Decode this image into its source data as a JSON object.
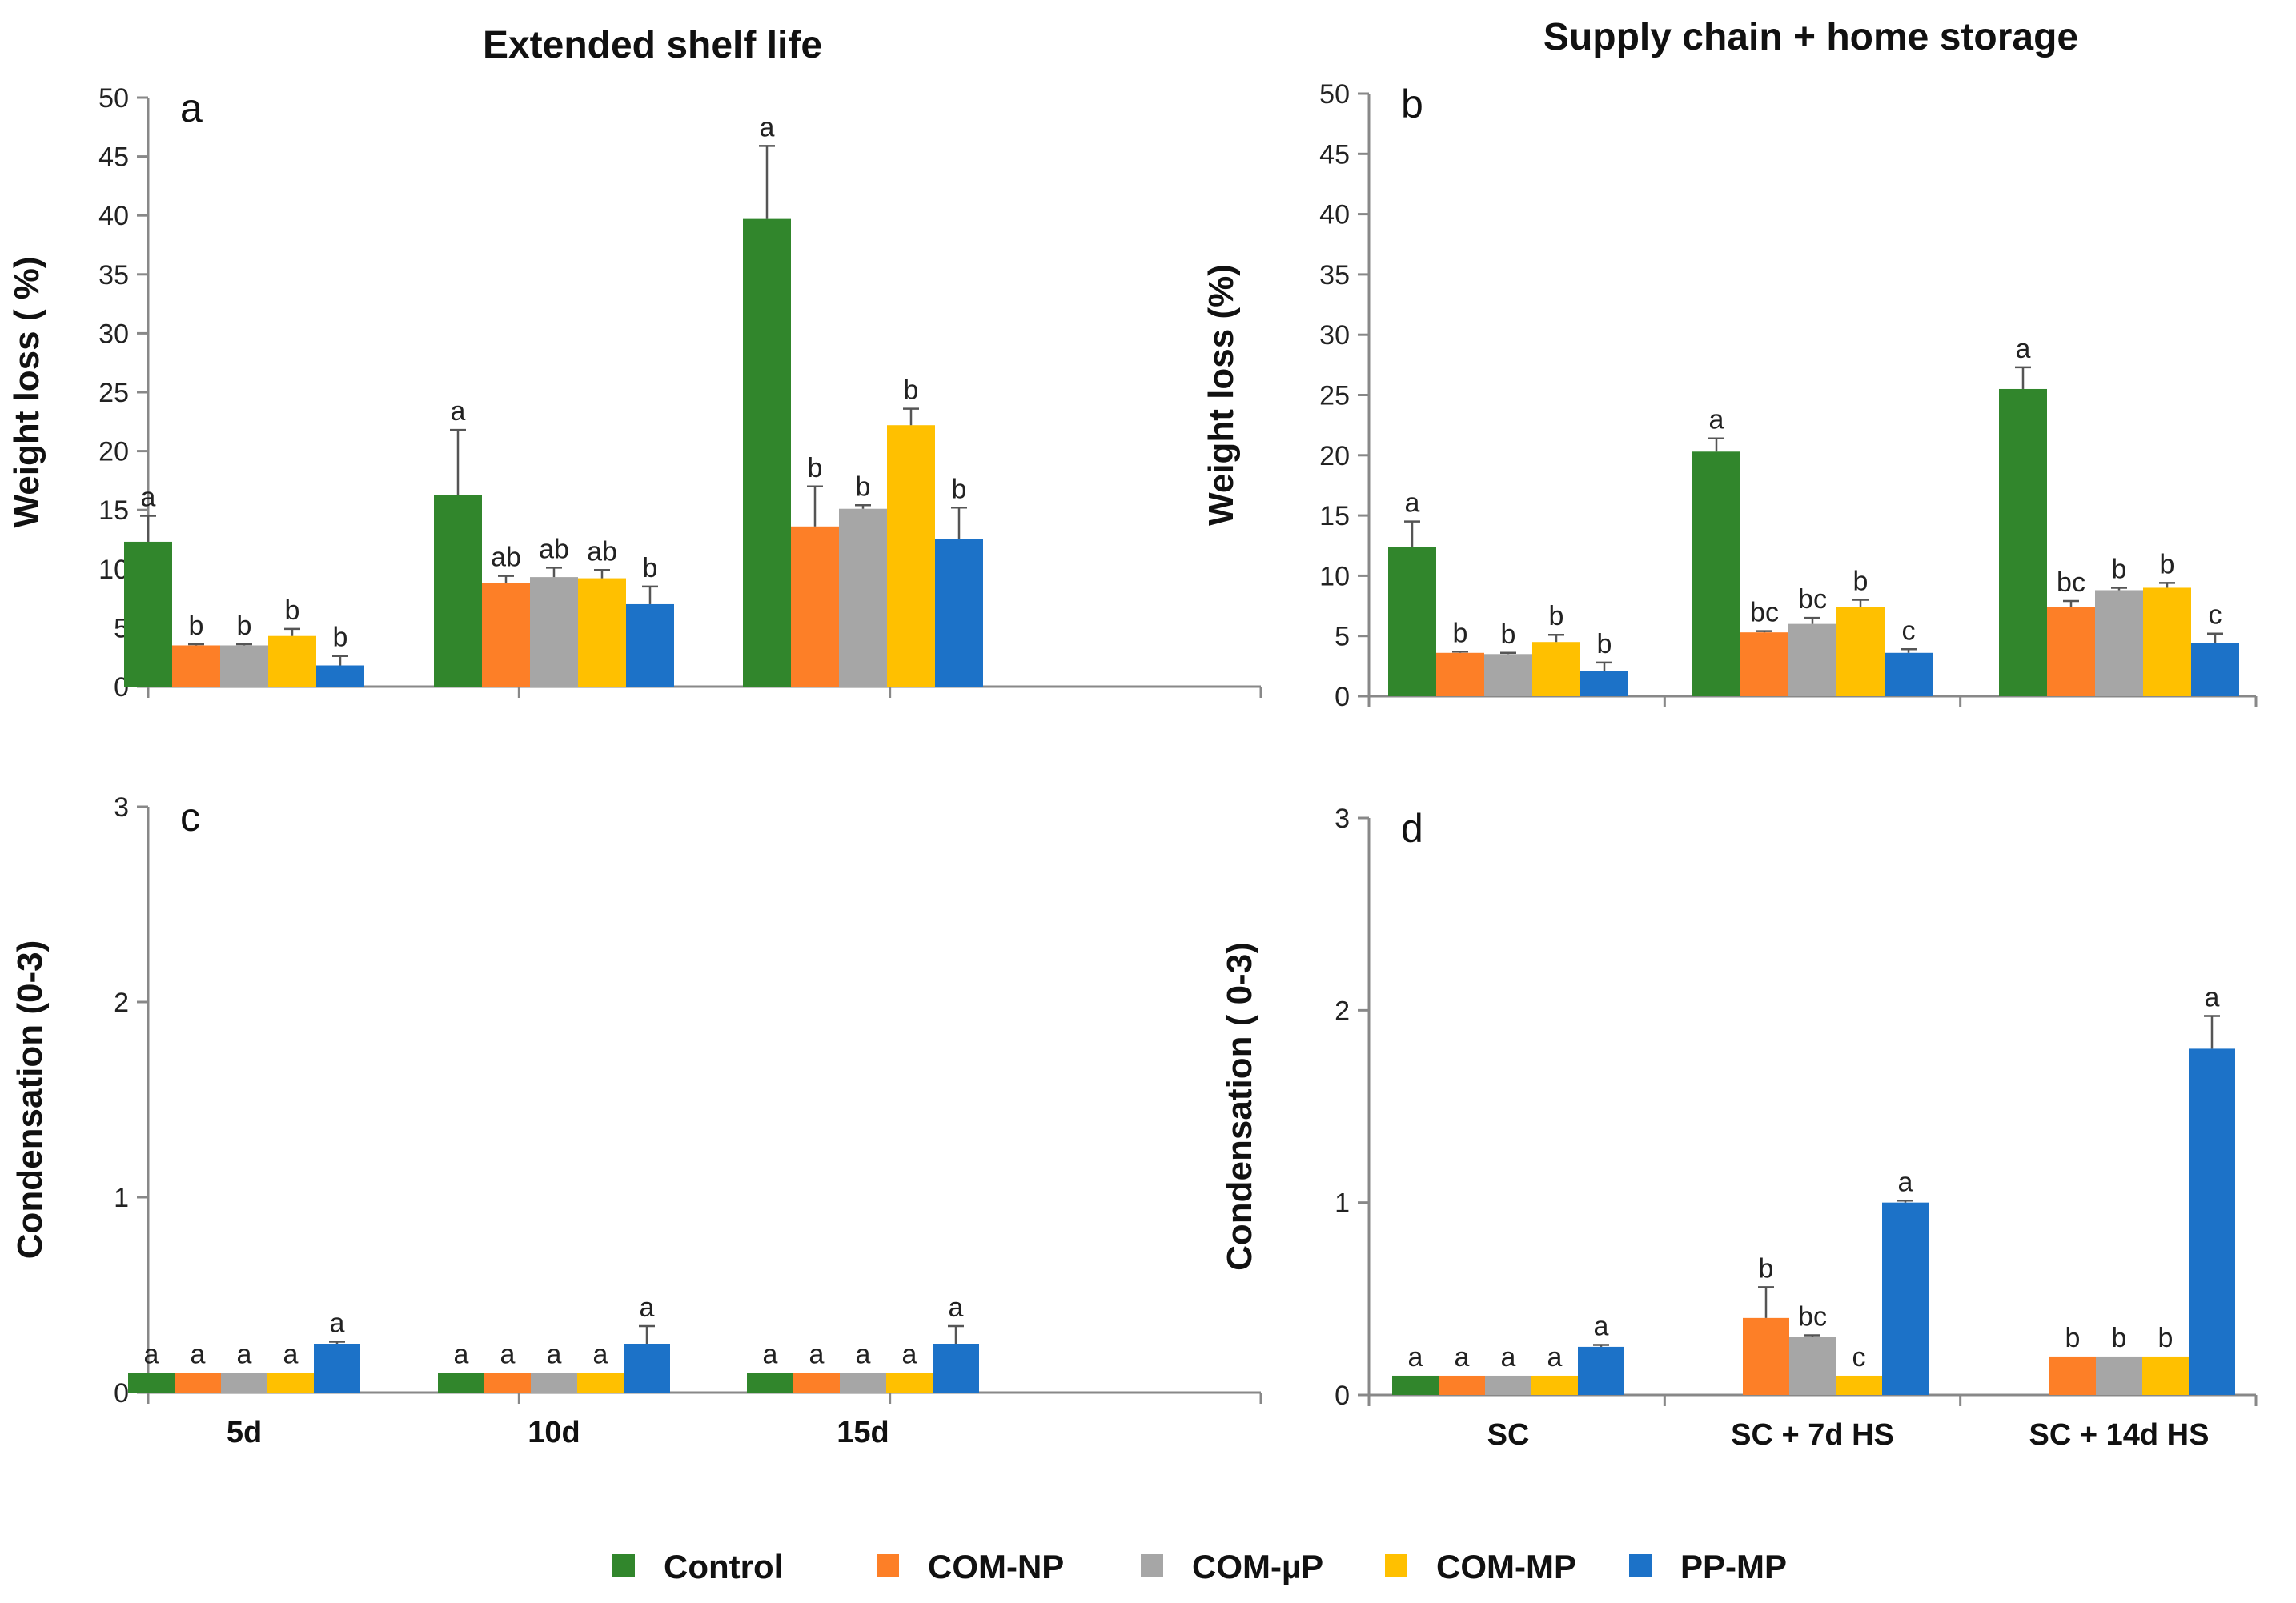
{
  "column_titles": [
    "Extended shelf life",
    "Supply chain + home storage"
  ],
  "legend": [
    {
      "name": "Control",
      "color": "#31862c"
    },
    {
      "name": "COM-NP",
      "color": "#fd7f27"
    },
    {
      "name": "COM-µP",
      "color": "#a6a6a6"
    },
    {
      "name": "COM-MP",
      "color": "#ffc000"
    },
    {
      "name": "PP-MP",
      "color": "#1c72c8"
    }
  ],
  "chart_data": [
    {
      "type": "bar",
      "panel": "a",
      "title": "Extended shelf life",
      "ylabel": "Weight loss ( %)",
      "xlabel": "",
      "ylim": [
        0,
        50
      ],
      "yticks": [
        0,
        5,
        10,
        15,
        20,
        25,
        30,
        35,
        40,
        45,
        50
      ],
      "categories": [
        "5d",
        "10d",
        "15d"
      ],
      "series": [
        {
          "name": "Control",
          "values": [
            12.3,
            16.3,
            39.7
          ],
          "errors": [
            2.2,
            5.5,
            6.2
          ],
          "letters": [
            "a",
            "a",
            "a"
          ]
        },
        {
          "name": "COM-NP",
          "values": [
            3.5,
            8.8,
            13.6
          ],
          "errors": [
            0.1,
            0.6,
            3.4
          ],
          "letters": [
            "b",
            "ab",
            "b"
          ]
        },
        {
          "name": "COM-µP",
          "values": [
            3.5,
            9.3,
            15.1
          ],
          "errors": [
            0.1,
            0.8,
            0.3
          ],
          "letters": [
            "b",
            "ab",
            "b"
          ]
        },
        {
          "name": "COM-MP",
          "values": [
            4.3,
            9.2,
            22.2
          ],
          "errors": [
            0.6,
            0.7,
            1.4
          ],
          "letters": [
            "b",
            "ab",
            "b"
          ]
        },
        {
          "name": "PP-MP",
          "values": [
            1.8,
            7.0,
            12.5
          ],
          "errors": [
            0.8,
            1.5,
            2.7
          ],
          "letters": [
            "b",
            "b",
            "b"
          ]
        }
      ]
    },
    {
      "type": "bar",
      "panel": "b",
      "title": "Supply chain + home storage",
      "ylabel": "Weight loss (%)",
      "xlabel": "",
      "ylim": [
        0,
        50
      ],
      "yticks": [
        0,
        5,
        10,
        15,
        20,
        25,
        30,
        35,
        40,
        45,
        50
      ],
      "categories": [
        "SC",
        "SC + 7d HS",
        "SC + 14d HS"
      ],
      "series": [
        {
          "name": "Control",
          "values": [
            12.4,
            20.3,
            25.5
          ],
          "errors": [
            2.1,
            1.1,
            1.8
          ],
          "letters": [
            "a",
            "a",
            "a"
          ]
        },
        {
          "name": "COM-NP",
          "values": [
            3.6,
            5.3,
            7.4
          ],
          "errors": [
            0.1,
            0.1,
            0.5
          ],
          "letters": [
            "b",
            "bc",
            "bc"
          ]
        },
        {
          "name": "COM-µP",
          "values": [
            3.5,
            6.0,
            8.8
          ],
          "errors": [
            0.1,
            0.5,
            0.2
          ],
          "letters": [
            "b",
            "bc",
            "b"
          ]
        },
        {
          "name": "COM-MP",
          "values": [
            4.5,
            7.4,
            9.0
          ],
          "errors": [
            0.6,
            0.6,
            0.4
          ],
          "letters": [
            "b",
            "b",
            "b"
          ]
        },
        {
          "name": "PP-MP",
          "values": [
            2.1,
            3.6,
            4.4
          ],
          "errors": [
            0.7,
            0.3,
            0.8
          ],
          "letters": [
            "b",
            "c",
            "c"
          ]
        }
      ]
    },
    {
      "type": "bar",
      "panel": "c",
      "title": "",
      "ylabel": "Condensation (0-3)",
      "xlabel": "",
      "ylim": [
        0,
        3
      ],
      "yticks": [
        0,
        1,
        2,
        3
      ],
      "categories": [
        "5d",
        "10d",
        "15d"
      ],
      "series": [
        {
          "name": "Control",
          "values": [
            0.1,
            0.1,
            0.1
          ],
          "errors": [
            0,
            0,
            0
          ],
          "letters": [
            "a",
            "a",
            "a"
          ]
        },
        {
          "name": "COM-NP",
          "values": [
            0.1,
            0.1,
            0.1
          ],
          "errors": [
            0,
            0,
            0
          ],
          "letters": [
            "a",
            "a",
            "a"
          ]
        },
        {
          "name": "COM-µP",
          "values": [
            0.1,
            0.1,
            0.1
          ],
          "errors": [
            0,
            0,
            0
          ],
          "letters": [
            "a",
            "a",
            "a"
          ]
        },
        {
          "name": "COM-MP",
          "values": [
            0.1,
            0.1,
            0.1
          ],
          "errors": [
            0,
            0,
            0
          ],
          "letters": [
            "a",
            "a",
            "a"
          ]
        },
        {
          "name": "PP-MP",
          "values": [
            0.25,
            0.25,
            0.25
          ],
          "errors": [
            0.01,
            0.09,
            0.09
          ],
          "letters": [
            "a",
            "a",
            "a"
          ]
        }
      ]
    },
    {
      "type": "bar",
      "panel": "d",
      "title": "",
      "ylabel": "Condensation ( 0-3)",
      "xlabel": "",
      "ylim": [
        0,
        3
      ],
      "yticks": [
        0,
        1,
        2,
        3
      ],
      "categories": [
        "SC",
        "SC + 7d HS",
        "SC + 14d HS"
      ],
      "series": [
        {
          "name": "Control",
          "values": [
            0.1,
            0,
            0
          ],
          "errors": [
            0,
            0,
            0
          ],
          "letters": [
            "a",
            "",
            ""
          ]
        },
        {
          "name": "COM-NP",
          "values": [
            0.1,
            0.4,
            0.2
          ],
          "errors": [
            0,
            0.16,
            0
          ],
          "letters": [
            "a",
            "b",
            "b"
          ]
        },
        {
          "name": "COM-µP",
          "values": [
            0.1,
            0.3,
            0.2
          ],
          "errors": [
            0,
            0.01,
            0
          ],
          "letters": [
            "a",
            "bc",
            "b"
          ]
        },
        {
          "name": "COM-MP",
          "values": [
            0.1,
            0.1,
            0.2
          ],
          "errors": [
            0,
            0,
            0
          ],
          "letters": [
            "a",
            "c",
            "b"
          ]
        },
        {
          "name": "PP-MP",
          "values": [
            0.25,
            1.0,
            1.8
          ],
          "errors": [
            0.01,
            0.01,
            0.17
          ],
          "letters": [
            "a",
            "a",
            "a"
          ]
        }
      ]
    }
  ]
}
